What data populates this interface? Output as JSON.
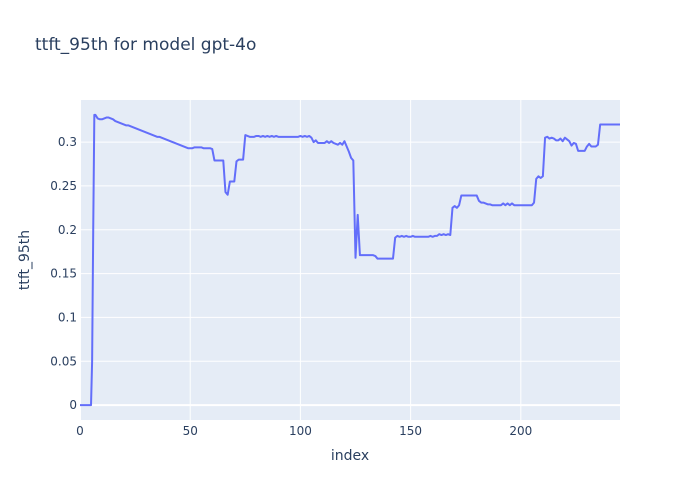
{
  "chart_data": {
    "type": "line",
    "title": "ttft_95th for model gpt-4o",
    "xlabel": "index",
    "ylabel": "ttft_95th",
    "xlim": [
      0,
      245
    ],
    "ylim": [
      -0.017,
      0.348
    ],
    "x_ticks": [
      0,
      50,
      100,
      150,
      200
    ],
    "y_ticks": [
      0,
      0.05,
      0.1,
      0.15,
      0.2,
      0.25,
      0.3
    ],
    "y_tick_labels": [
      "0",
      "0.05",
      "0.1",
      "0.15",
      "0.2",
      "0.25",
      "0.3"
    ],
    "grid": true,
    "series": [
      {
        "color": "#636efa",
        "points": [
          [
            0,
            0
          ],
          [
            5,
            0
          ],
          [
            5.5,
            0.05
          ],
          [
            6,
            0.2
          ],
          [
            6.5,
            0.331
          ],
          [
            7,
            0.331
          ],
          [
            8,
            0.327
          ],
          [
            9,
            0.326
          ],
          [
            10,
            0.326
          ],
          [
            11,
            0.327
          ],
          [
            12,
            0.328
          ],
          [
            13,
            0.328
          ],
          [
            14,
            0.327
          ],
          [
            15,
            0.326
          ],
          [
            16,
            0.324
          ],
          [
            17,
            0.323
          ],
          [
            18,
            0.322
          ],
          [
            19,
            0.321
          ],
          [
            20,
            0.32
          ],
          [
            21,
            0.319
          ],
          [
            22,
            0.319
          ],
          [
            23,
            0.318
          ],
          [
            24,
            0.317
          ],
          [
            25,
            0.316
          ],
          [
            26,
            0.315
          ],
          [
            27,
            0.314
          ],
          [
            28,
            0.313
          ],
          [
            29,
            0.312
          ],
          [
            30,
            0.311
          ],
          [
            31,
            0.31
          ],
          [
            32,
            0.309
          ],
          [
            33,
            0.308
          ],
          [
            34,
            0.307
          ],
          [
            35,
            0.306
          ],
          [
            36,
            0.306
          ],
          [
            37,
            0.305
          ],
          [
            38,
            0.304
          ],
          [
            39,
            0.303
          ],
          [
            40,
            0.302
          ],
          [
            41,
            0.301
          ],
          [
            42,
            0.3
          ],
          [
            43,
            0.299
          ],
          [
            44,
            0.298
          ],
          [
            45,
            0.297
          ],
          [
            46,
            0.296
          ],
          [
            47,
            0.295
          ],
          [
            48,
            0.294
          ],
          [
            49,
            0.293
          ],
          [
            50,
            0.293
          ],
          [
            51,
            0.293
          ],
          [
            52,
            0.294
          ],
          [
            53,
            0.294
          ],
          [
            54,
            0.294
          ],
          [
            55,
            0.294
          ],
          [
            56,
            0.293
          ],
          [
            57,
            0.293
          ],
          [
            58,
            0.293
          ],
          [
            59,
            0.293
          ],
          [
            60,
            0.292
          ],
          [
            61,
            0.279
          ],
          [
            62,
            0.279
          ],
          [
            63,
            0.279
          ],
          [
            64,
            0.279
          ],
          [
            65,
            0.279
          ],
          [
            66,
            0.243
          ],
          [
            67,
            0.24
          ],
          [
            68,
            0.255
          ],
          [
            69,
            0.255
          ],
          [
            70,
            0.255
          ],
          [
            71,
            0.278
          ],
          [
            72,
            0.28
          ],
          [
            73,
            0.28
          ],
          [
            74,
            0.28
          ],
          [
            75,
            0.308
          ],
          [
            76,
            0.307
          ],
          [
            77,
            0.306
          ],
          [
            78,
            0.306
          ],
          [
            79,
            0.306
          ],
          [
            80,
            0.307
          ],
          [
            81,
            0.307
          ],
          [
            82,
            0.306
          ],
          [
            83,
            0.307
          ],
          [
            84,
            0.306
          ],
          [
            85,
            0.307
          ],
          [
            86,
            0.306
          ],
          [
            87,
            0.307
          ],
          [
            88,
            0.306
          ],
          [
            89,
            0.307
          ],
          [
            90,
            0.306
          ],
          [
            91,
            0.306
          ],
          [
            92,
            0.306
          ],
          [
            93,
            0.306
          ],
          [
            94,
            0.306
          ],
          [
            95,
            0.306
          ],
          [
            96,
            0.306
          ],
          [
            97,
            0.306
          ],
          [
            98,
            0.306
          ],
          [
            99,
            0.306
          ],
          [
            100,
            0.307
          ],
          [
            101,
            0.306
          ],
          [
            102,
            0.307
          ],
          [
            103,
            0.306
          ],
          [
            104,
            0.307
          ],
          [
            105,
            0.305
          ],
          [
            106,
            0.3
          ],
          [
            107,
            0.302
          ],
          [
            108,
            0.299
          ],
          [
            109,
            0.299
          ],
          [
            110,
            0.299
          ],
          [
            111,
            0.299
          ],
          [
            112,
            0.301
          ],
          [
            113,
            0.299
          ],
          [
            114,
            0.301
          ],
          [
            115,
            0.299
          ],
          [
            116,
            0.298
          ],
          [
            117,
            0.297
          ],
          [
            118,
            0.299
          ],
          [
            119,
            0.297
          ],
          [
            120,
            0.301
          ],
          [
            121,
            0.295
          ],
          [
            122,
            0.289
          ],
          [
            123,
            0.282
          ],
          [
            124,
            0.279
          ],
          [
            125,
            0.168
          ],
          [
            126,
            0.217
          ],
          [
            127,
            0.171
          ],
          [
            128,
            0.171
          ],
          [
            133,
            0.171
          ],
          [
            134,
            0.17
          ],
          [
            135,
            0.167
          ],
          [
            136,
            0.167
          ],
          [
            142,
            0.167
          ],
          [
            143,
            0.191
          ],
          [
            144,
            0.193
          ],
          [
            145,
            0.192
          ],
          [
            146,
            0.193
          ],
          [
            147,
            0.192
          ],
          [
            148,
            0.193
          ],
          [
            149,
            0.192
          ],
          [
            150,
            0.192
          ],
          [
            151,
            0.193
          ],
          [
            152,
            0.192
          ],
          [
            153,
            0.192
          ],
          [
            154,
            0.192
          ],
          [
            155,
            0.192
          ],
          [
            156,
            0.192
          ],
          [
            157,
            0.192
          ],
          [
            158,
            0.192
          ],
          [
            159,
            0.193
          ],
          [
            160,
            0.192
          ],
          [
            161,
            0.193
          ],
          [
            162,
            0.193
          ],
          [
            163,
            0.195
          ],
          [
            164,
            0.194
          ],
          [
            165,
            0.195
          ],
          [
            166,
            0.194
          ],
          [
            167,
            0.195
          ],
          [
            168,
            0.194
          ],
          [
            169,
            0.225
          ],
          [
            170,
            0.227
          ],
          [
            171,
            0.225
          ],
          [
            172,
            0.228
          ],
          [
            173,
            0.239
          ],
          [
            174,
            0.239
          ],
          [
            175,
            0.239
          ],
          [
            176,
            0.239
          ],
          [
            177,
            0.239
          ],
          [
            178,
            0.239
          ],
          [
            179,
            0.239
          ],
          [
            180,
            0.239
          ],
          [
            181,
            0.233
          ],
          [
            182,
            0.231
          ],
          [
            183,
            0.231
          ],
          [
            184,
            0.23
          ],
          [
            185,
            0.229
          ],
          [
            186,
            0.229
          ],
          [
            187,
            0.228
          ],
          [
            188,
            0.228
          ],
          [
            189,
            0.228
          ],
          [
            190,
            0.228
          ],
          [
            191,
            0.228
          ],
          [
            192,
            0.23
          ],
          [
            193,
            0.228
          ],
          [
            194,
            0.23
          ],
          [
            195,
            0.228
          ],
          [
            196,
            0.23
          ],
          [
            197,
            0.228
          ],
          [
            198,
            0.228
          ],
          [
            199,
            0.228
          ],
          [
            200,
            0.228
          ],
          [
            201,
            0.228
          ],
          [
            202,
            0.228
          ],
          [
            203,
            0.228
          ],
          [
            204,
            0.228
          ],
          [
            205,
            0.228
          ],
          [
            206,
            0.231
          ],
          [
            207,
            0.258
          ],
          [
            208,
            0.261
          ],
          [
            209,
            0.259
          ],
          [
            210,
            0.261
          ],
          [
            211,
            0.305
          ],
          [
            212,
            0.306
          ],
          [
            213,
            0.304
          ],
          [
            214,
            0.305
          ],
          [
            215,
            0.304
          ],
          [
            216,
            0.302
          ],
          [
            217,
            0.302
          ],
          [
            218,
            0.304
          ],
          [
            219,
            0.301
          ],
          [
            220,
            0.305
          ],
          [
            221,
            0.303
          ],
          [
            222,
            0.301
          ],
          [
            223,
            0.296
          ],
          [
            224,
            0.299
          ],
          [
            225,
            0.298
          ],
          [
            226,
            0.29
          ],
          [
            227,
            0.29
          ],
          [
            228,
            0.29
          ],
          [
            229,
            0.29
          ],
          [
            230,
            0.295
          ],
          [
            231,
            0.298
          ],
          [
            232,
            0.295
          ],
          [
            233,
            0.295
          ],
          [
            234,
            0.295
          ],
          [
            235,
            0.297
          ],
          [
            236,
            0.32
          ],
          [
            237,
            0.32
          ],
          [
            238,
            0.32
          ],
          [
            239,
            0.32
          ],
          [
            240,
            0.32
          ],
          [
            241,
            0.32
          ],
          [
            242,
            0.32
          ],
          [
            243,
            0.32
          ],
          [
            244,
            0.32
          ],
          [
            245,
            0.32
          ]
        ]
      }
    ]
  }
}
